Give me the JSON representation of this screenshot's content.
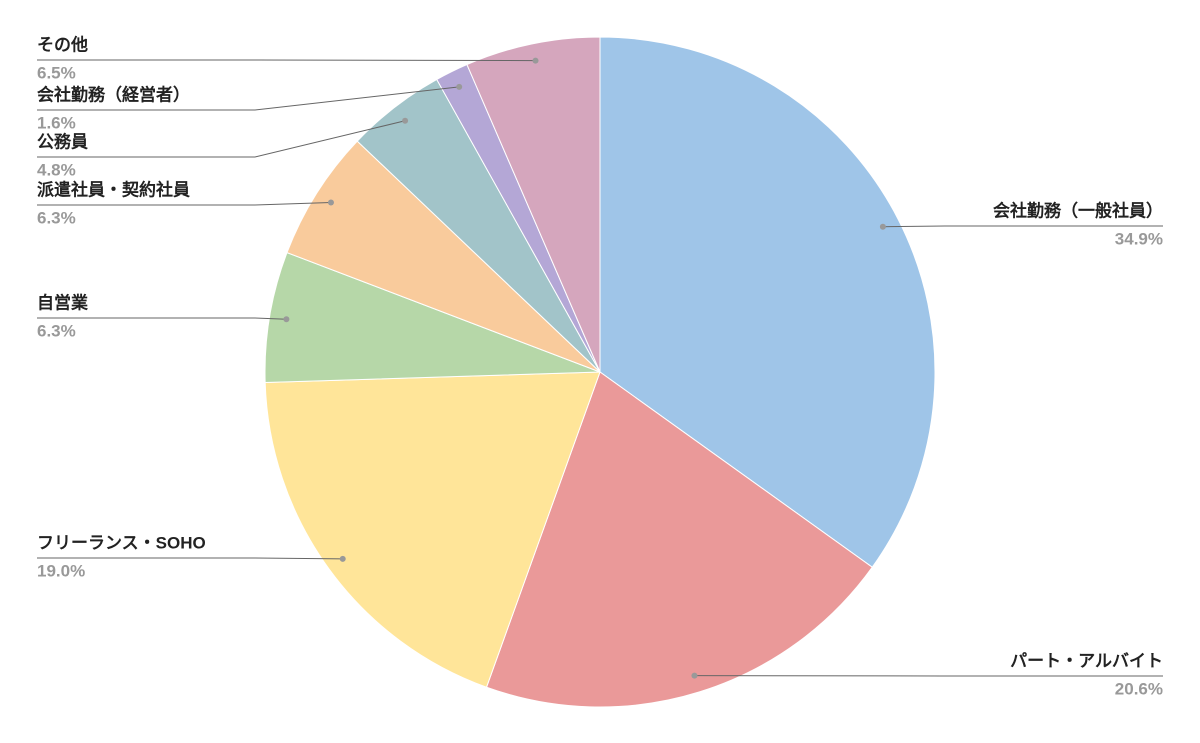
{
  "chart_data": {
    "type": "pie",
    "categories": [
      "会社勤務（一般社員）",
      "パート・アルバイト",
      "フリーランス・SOHO",
      "自営業",
      "派遣社員・契約社員",
      "公務員",
      "会社勤務（経営者）",
      "その他"
    ],
    "values": [
      34.9,
      20.6,
      19.0,
      6.3,
      6.3,
      4.8,
      1.6,
      6.5
    ],
    "value_labels": [
      "34.9%",
      "20.6%",
      "19.0%",
      "6.3%",
      "6.3%",
      "4.8%",
      "1.6%",
      "6.5%"
    ],
    "colors": [
      "#9fc5e8",
      "#ea9999",
      "#ffe599",
      "#b6d7a8",
      "#f9cb9c",
      "#a2c4c9",
      "#b4a7d6",
      "#d5a6bd"
    ]
  }
}
